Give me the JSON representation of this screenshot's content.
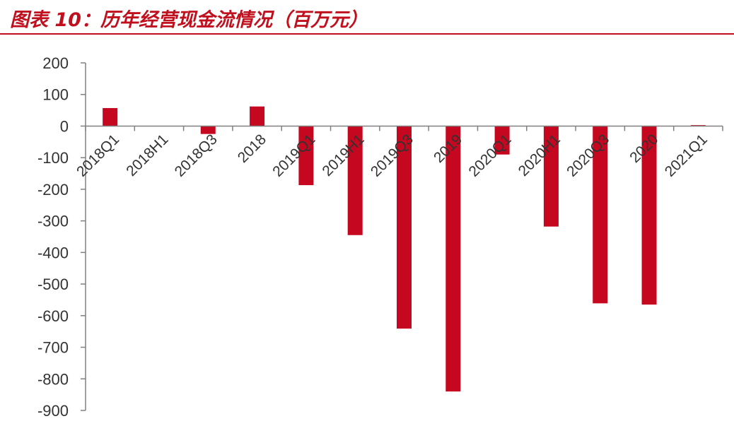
{
  "title": "图表 10：历年经营现金流情况（百万元）",
  "colors": {
    "bar": "#c5071f",
    "axis": "#808080",
    "title": "#c0101e"
  },
  "chart_data": {
    "type": "bar",
    "title": "图表 10：历年经营现金流情况（百万元）",
    "xlabel": "",
    "ylabel": "",
    "ylim": [
      -900,
      200
    ],
    "yticks": [
      200,
      100,
      0,
      -100,
      -200,
      -300,
      -400,
      -500,
      -600,
      -700,
      -800,
      -900
    ],
    "grid": false,
    "legend": "none",
    "categories": [
      "2018Q1",
      "2018H1",
      "2018Q3",
      "2018",
      "2019Q1",
      "2019H1",
      "2019Q3",
      "2019",
      "2020Q1",
      "2020H1",
      "2020Q3",
      "2020",
      "2021Q1"
    ],
    "values": [
      57,
      0,
      -25,
      62,
      -187,
      -345,
      -641,
      -840,
      -90,
      -318,
      -561,
      -565,
      3
    ]
  }
}
